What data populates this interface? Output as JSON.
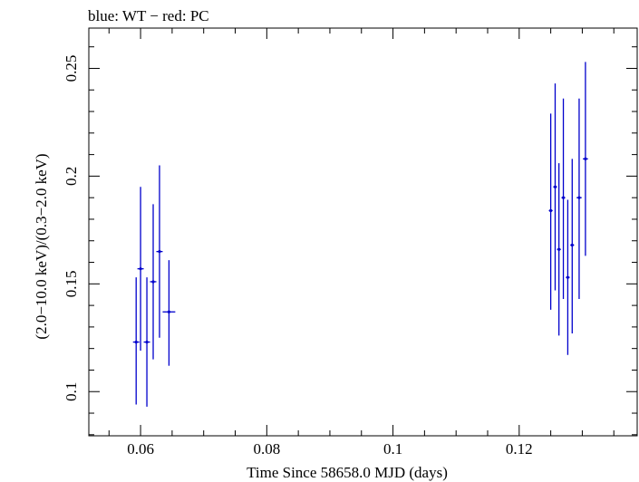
{
  "chart_data": {
    "type": "scatter",
    "title": "blue: WT − red: PC",
    "xlabel": "Time Since 58658.0 MJD (days)",
    "ylabel": "(2.0−10.0 keV)/(0.3−2.0 keV)",
    "xlim": [
      0.0518,
      0.1387
    ],
    "ylim": [
      0.0795,
      0.2687
    ],
    "x_ticks": [
      0.06,
      0.08,
      0.1,
      0.12
    ],
    "x_tick_labels": [
      "0.06",
      "0.08",
      "0.1",
      "0.12"
    ],
    "y_ticks": [
      0.1,
      0.15,
      0.2,
      0.25
    ],
    "y_tick_labels": [
      "0.1",
      "0.15",
      "0.2",
      "0.25"
    ],
    "grid": false,
    "colors": {
      "WT": "#0000cc",
      "PC": "#cc0000"
    },
    "series": [
      {
        "name": "WT",
        "color": "#0000cc",
        "points": [
          {
            "x": 0.0593,
            "xerr": 0.0005,
            "y": 0.123,
            "ylo": 0.094,
            "yhi": 0.153
          },
          {
            "x": 0.06,
            "xerr": 0.0005,
            "y": 0.157,
            "ylo": 0.119,
            "yhi": 0.195
          },
          {
            "x": 0.061,
            "xerr": 0.0005,
            "y": 0.123,
            "ylo": 0.093,
            "yhi": 0.153
          },
          {
            "x": 0.062,
            "xerr": 0.0005,
            "y": 0.151,
            "ylo": 0.115,
            "yhi": 0.187
          },
          {
            "x": 0.063,
            "xerr": 0.0005,
            "y": 0.165,
            "ylo": 0.125,
            "yhi": 0.205
          },
          {
            "x": 0.0645,
            "xerr": 0.001,
            "y": 0.137,
            "ylo": 0.112,
            "yhi": 0.161
          },
          {
            "x": 0.125,
            "xerr": 0.0003,
            "y": 0.184,
            "ylo": 0.138,
            "yhi": 0.229
          },
          {
            "x": 0.1257,
            "xerr": 0.0003,
            "y": 0.195,
            "ylo": 0.147,
            "yhi": 0.243
          },
          {
            "x": 0.1263,
            "xerr": 0.0003,
            "y": 0.166,
            "ylo": 0.126,
            "yhi": 0.206
          },
          {
            "x": 0.127,
            "xerr": 0.0003,
            "y": 0.19,
            "ylo": 0.143,
            "yhi": 0.236
          },
          {
            "x": 0.1277,
            "xerr": 0.0003,
            "y": 0.153,
            "ylo": 0.117,
            "yhi": 0.189
          },
          {
            "x": 0.1284,
            "xerr": 0.0003,
            "y": 0.168,
            "ylo": 0.127,
            "yhi": 0.208
          },
          {
            "x": 0.1295,
            "xerr": 0.0004,
            "y": 0.19,
            "ylo": 0.143,
            "yhi": 0.236
          },
          {
            "x": 0.1305,
            "xerr": 0.0004,
            "y": 0.208,
            "ylo": 0.163,
            "yhi": 0.253
          }
        ]
      }
    ]
  }
}
